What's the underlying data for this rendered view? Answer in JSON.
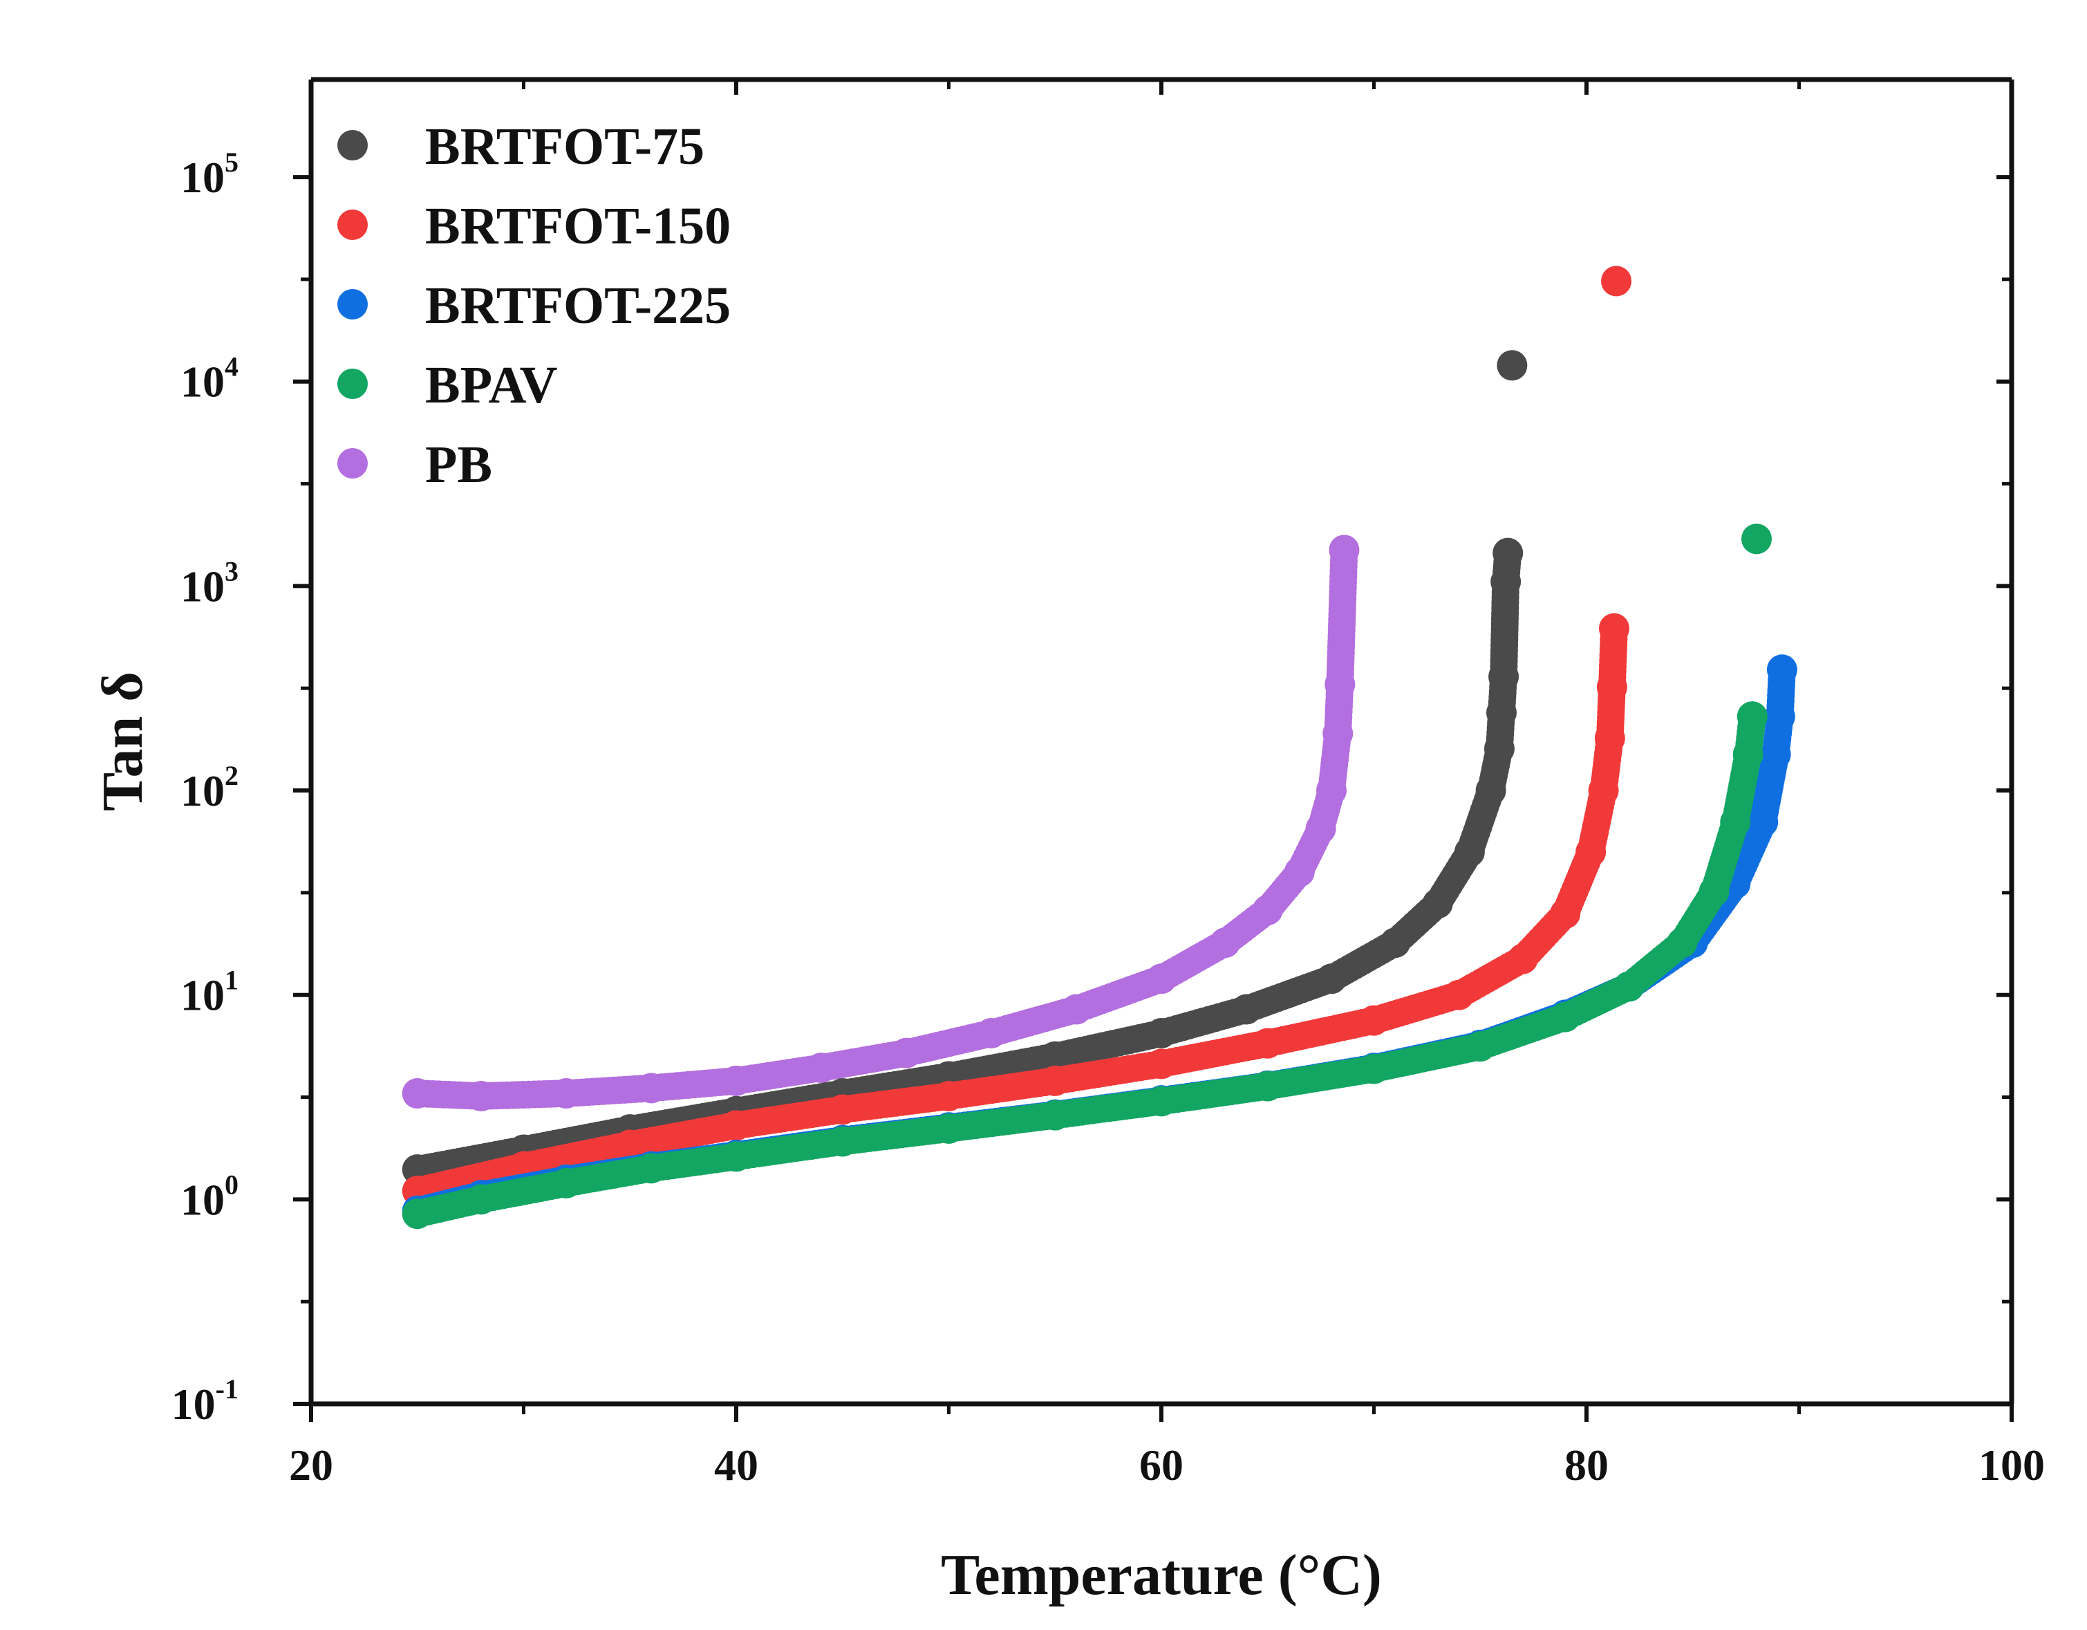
{
  "chart_data": {
    "type": "scatter",
    "xlabel": "Temperature (°C)",
    "ylabel": "Tan δ",
    "xlim": [
      20,
      100
    ],
    "ylim": [
      0.1,
      300000
    ],
    "yscale": "log",
    "xticks": [
      20,
      40,
      60,
      80,
      100
    ],
    "xtick_labels": [
      "20",
      "40",
      "60",
      "80",
      "100"
    ],
    "yticks": [
      {
        "value": 0.1,
        "base": "10",
        "exp": "-1"
      },
      {
        "value": 1,
        "base": "10",
        "exp": "0"
      },
      {
        "value": 10,
        "base": "10",
        "exp": "1"
      },
      {
        "value": 100,
        "base": "10",
        "exp": "2"
      },
      {
        "value": 1000,
        "base": "10",
        "exp": "3"
      },
      {
        "value": 10000,
        "base": "10",
        "exp": "4"
      },
      {
        "value": 100000,
        "base": "10",
        "exp": "5"
      }
    ],
    "legend_position": "top-left",
    "series": [
      {
        "name": "PB",
        "color": "#b36ee0",
        "points": [
          [
            25,
            3.3
          ],
          [
            28,
            3.2
          ],
          [
            32,
            3.3
          ],
          [
            36,
            3.5
          ],
          [
            40,
            3.8
          ],
          [
            44,
            4.4
          ],
          [
            48,
            5.2
          ],
          [
            52,
            6.5
          ],
          [
            56,
            8.5
          ],
          [
            60,
            12
          ],
          [
            63,
            18
          ],
          [
            65,
            26
          ],
          [
            66.5,
            40
          ],
          [
            67.5,
            65
          ],
          [
            68,
            100
          ],
          [
            68.3,
            190
          ],
          [
            68.4,
            330
          ],
          [
            68.6,
            1500
          ]
        ]
      },
      {
        "name": "BRTFOT-75",
        "color": "#4a4a4a",
        "points": [
          [
            25,
            1.4
          ],
          [
            30,
            1.75
          ],
          [
            35,
            2.2
          ],
          [
            40,
            2.7
          ],
          [
            45,
            3.3
          ],
          [
            50,
            4.0
          ],
          [
            55,
            5.0
          ],
          [
            60,
            6.5
          ],
          [
            64,
            8.5
          ],
          [
            68,
            12
          ],
          [
            71,
            18
          ],
          [
            73,
            28
          ],
          [
            74.5,
            50
          ],
          [
            75.5,
            100
          ],
          [
            75.9,
            160
          ],
          [
            76,
            240
          ],
          [
            76.1,
            360
          ],
          [
            76.2,
            1050
          ],
          [
            76.3,
            1450
          ],
          [
            76.5,
            12000
          ]
        ]
      },
      {
        "name": "BRTFOT-150",
        "color": "#f2393a",
        "points": [
          [
            25,
            1.1
          ],
          [
            30,
            1.45
          ],
          [
            35,
            1.85
          ],
          [
            40,
            2.3
          ],
          [
            45,
            2.75
          ],
          [
            50,
            3.2
          ],
          [
            55,
            3.8
          ],
          [
            60,
            4.6
          ],
          [
            65,
            5.8
          ],
          [
            70,
            7.5
          ],
          [
            74,
            10
          ],
          [
            77,
            15
          ],
          [
            79,
            25
          ],
          [
            80.2,
            50
          ],
          [
            80.8,
            100
          ],
          [
            81.1,
            180
          ],
          [
            81.2,
            320
          ],
          [
            81.3,
            620
          ],
          [
            81.4,
            31000
          ]
        ]
      },
      {
        "name": "BRTFOT-225",
        "color": "#0f6fe0",
        "points": [
          [
            25,
            0.88
          ],
          [
            28,
            1.05
          ],
          [
            32,
            1.25
          ],
          [
            36,
            1.45
          ],
          [
            40,
            1.65
          ],
          [
            45,
            1.95
          ],
          [
            50,
            2.25
          ],
          [
            55,
            2.6
          ],
          [
            60,
            3.05
          ],
          [
            65,
            3.6
          ],
          [
            70,
            4.4
          ],
          [
            75,
            5.7
          ],
          [
            79,
            8
          ],
          [
            82,
            11
          ],
          [
            85,
            18
          ],
          [
            87,
            35
          ],
          [
            88.3,
            70
          ],
          [
            88.9,
            150
          ],
          [
            89.1,
            230
          ],
          [
            89.2,
            390
          ]
        ]
      },
      {
        "name": "BPAV",
        "color": "#12a662",
        "points": [
          [
            25,
            0.85
          ],
          [
            28,
            1.0
          ],
          [
            32,
            1.2
          ],
          [
            36,
            1.42
          ],
          [
            40,
            1.62
          ],
          [
            45,
            1.92
          ],
          [
            50,
            2.22
          ],
          [
            55,
            2.58
          ],
          [
            60,
            3.02
          ],
          [
            65,
            3.58
          ],
          [
            70,
            4.35
          ],
          [
            75,
            5.6
          ],
          [
            79,
            7.8
          ],
          [
            82,
            11
          ],
          [
            84.5,
            18
          ],
          [
            86,
            32
          ],
          [
            87,
            70
          ],
          [
            87.6,
            150
          ],
          [
            87.8,
            230
          ],
          [
            88,
            1700
          ]
        ]
      }
    ]
  }
}
